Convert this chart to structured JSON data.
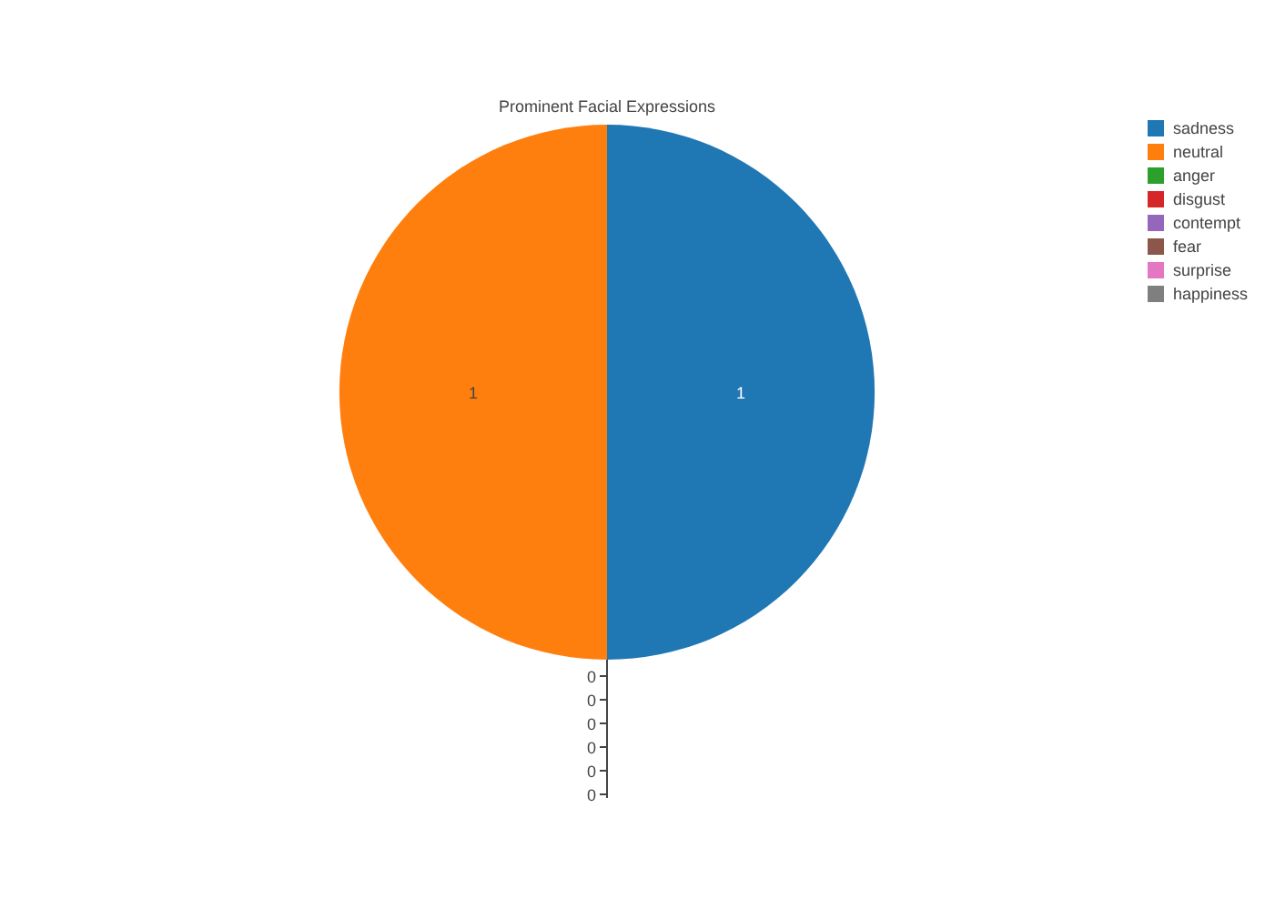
{
  "chart_data": {
    "type": "pie",
    "title": "Prominent Facial Expressions",
    "categories": [
      "sadness",
      "neutral",
      "anger",
      "disgust",
      "contempt",
      "fear",
      "surprise",
      "happiness"
    ],
    "values": [
      1,
      1,
      0,
      0,
      0,
      0,
      0,
      0
    ],
    "value_labels": [
      "1",
      "1",
      "0",
      "0",
      "0",
      "0",
      "0",
      "0"
    ],
    "colors": [
      "#1f77b4",
      "#ff7f0e",
      "#2ca02c",
      "#d62728",
      "#9467bd",
      "#8c564b",
      "#e377c2",
      "#7f7f7f"
    ],
    "legend": "top right"
  }
}
